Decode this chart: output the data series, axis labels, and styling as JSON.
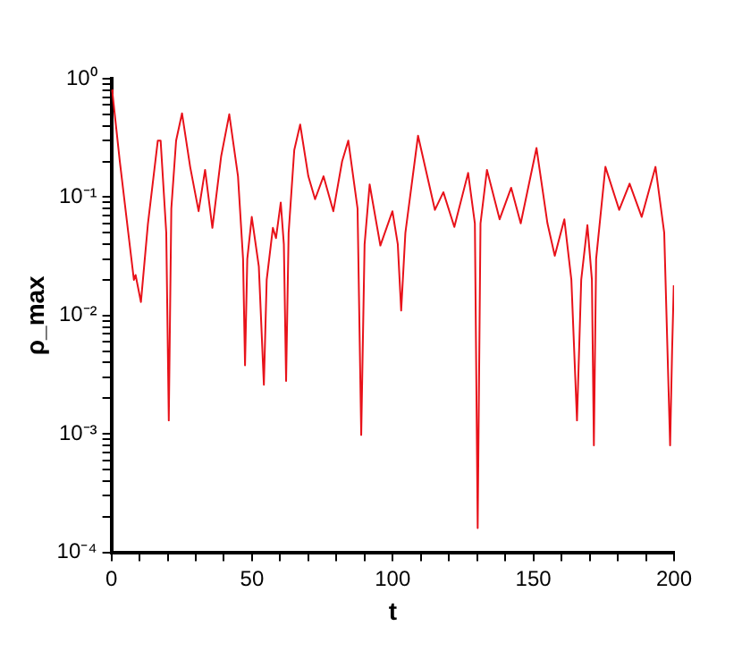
{
  "chart_data": {
    "type": "line",
    "xlabel": "t",
    "ylabel": "ρ_max",
    "log": "y",
    "grid": false,
    "legend": false,
    "marker": "none",
    "line_style": "solid",
    "x": [
      0,
      0.4,
      3,
      6,
      8,
      8.6,
      10.5,
      13,
      16.5,
      17.5,
      19.5,
      20.4,
      21.3,
      23,
      25.1,
      28,
      31,
      33.3,
      35.9,
      39,
      41.9,
      45,
      46.8,
      47.5,
      48.3,
      49.9,
      52.4,
      54.2,
      55.2,
      57.4,
      58.5,
      60.2,
      61.3,
      62.1,
      63,
      65,
      67.1,
      70,
      72.4,
      75.4,
      78.9,
      82,
      84.2,
      87.5,
      88.8,
      90,
      91.8,
      95.6,
      99.9,
      101.8,
      103,
      104.5,
      109,
      115,
      118,
      121.9,
      126.8,
      129.2,
      130.2,
      131.2,
      133.5,
      138,
      142.1,
      145.5,
      151.1,
      155,
      157.6,
      161,
      163.5,
      165.5,
      167,
      169.2,
      170.8,
      171.5,
      172.3,
      175.6,
      180.5,
      184.2,
      188.5,
      193.4,
      196.5,
      198.6,
      199.3,
      199.9
    ],
    "ylim": [
      0.0001,
      1
    ],
    "yticks": [
      {
        "value": 0.0001,
        "label": "10⁻⁴"
      },
      {
        "value": 0.0002,
        "label": null
      },
      {
        "value": 0.0003,
        "label": null
      },
      {
        "value": 0.0004,
        "label": null
      },
      {
        "value": 0.0005,
        "label": null
      },
      {
        "value": 0.0006,
        "label": null
      },
      {
        "value": 0.0007,
        "label": null
      },
      {
        "value": 0.0008,
        "label": null
      },
      {
        "value": 0.0009,
        "label": null
      },
      {
        "value": 0.001,
        "label": "10⁻³"
      },
      {
        "value": 0.002,
        "label": null
      },
      {
        "value": 0.003,
        "label": null
      },
      {
        "value": 0.004,
        "label": null
      },
      {
        "value": 0.005,
        "label": null
      },
      {
        "value": 0.006,
        "label": null
      },
      {
        "value": 0.007,
        "label": null
      },
      {
        "value": 0.008,
        "label": null
      },
      {
        "value": 0.009,
        "label": null
      },
      {
        "value": 0.01,
        "label": "10⁻²"
      },
      {
        "value": 0.02,
        "label": null
      },
      {
        "value": 0.03,
        "label": null
      },
      {
        "value": 0.04,
        "label": null
      },
      {
        "value": 0.05,
        "label": null
      },
      {
        "value": 0.06,
        "label": null
      },
      {
        "value": 0.07,
        "label": null
      },
      {
        "value": 0.08,
        "label": null
      },
      {
        "value": 0.09,
        "label": null
      },
      {
        "value": 0.1,
        "label": "10⁻¹"
      },
      {
        "value": 0.2,
        "label": null
      },
      {
        "value": 0.3,
        "label": null
      },
      {
        "value": 0.4,
        "label": null
      },
      {
        "value": 0.5,
        "label": null
      },
      {
        "value": 0.6,
        "label": null
      },
      {
        "value": 0.7,
        "label": null
      },
      {
        "value": 0.8,
        "label": null
      },
      {
        "value": 0.9,
        "label": null
      },
      {
        "value": 1,
        "label": "10⁰"
      }
    ],
    "xlim": [
      0,
      200
    ],
    "xticks": [
      0,
      {
        "value": 10,
        "label": null
      },
      {
        "value": 20,
        "label": null
      },
      {
        "value": 30,
        "label": null
      },
      {
        "value": 40,
        "label": null
      },
      50,
      {
        "value": 60,
        "label": null
      },
      {
        "value": 70,
        "label": null
      },
      {
        "value": 80,
        "label": null
      },
      {
        "value": 90,
        "label": null
      },
      100,
      {
        "value": 110,
        "label": null
      },
      {
        "value": 120,
        "label": null
      },
      {
        "value": 130,
        "label": null
      },
      {
        "value": 140,
        "label": null
      },
      150,
      {
        "value": 160,
        "label": null
      },
      {
        "value": 170,
        "label": null
      },
      {
        "value": 180,
        "label": null
      },
      {
        "value": 190,
        "label": null
      },
      200
    ],
    "series": [
      {
        "color": "#e8121a",
        "values": [
          0.8,
          0.75,
          0.2,
          0.05,
          0.02,
          0.022,
          0.013,
          0.06,
          0.3,
          0.3,
          0.05,
          0.0013,
          0.08,
          0.3,
          0.51,
          0.18,
          0.076,
          0.17,
          0.055,
          0.22,
          0.5,
          0.15,
          0.03,
          0.0038,
          0.03,
          0.068,
          0.026,
          0.0026,
          0.02,
          0.055,
          0.045,
          0.09,
          0.04,
          0.0028,
          0.05,
          0.25,
          0.41,
          0.15,
          0.096,
          0.15,
          0.076,
          0.2,
          0.3,
          0.08,
          0.00098,
          0.04,
          0.128,
          0.039,
          0.076,
          0.04,
          0.011,
          0.05,
          0.33,
          0.078,
          0.11,
          0.056,
          0.16,
          0.06,
          0.00016,
          0.06,
          0.17,
          0.065,
          0.12,
          0.06,
          0.26,
          0.06,
          0.032,
          0.065,
          0.02,
          0.0013,
          0.02,
          0.058,
          0.02,
          0.0008,
          0.03,
          0.18,
          0.078,
          0.13,
          0.068,
          0.18,
          0.05,
          0.0008,
          0.005,
          0.018
        ]
      }
    ]
  }
}
